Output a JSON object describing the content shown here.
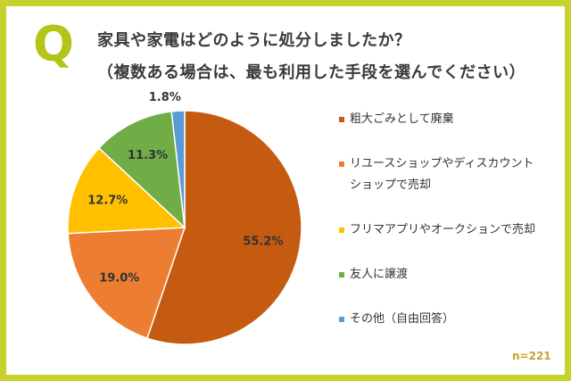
{
  "header": {
    "q_mark": "Q",
    "question_line1": "家具や家電はどのように処分しましたか？",
    "question_line2": "（複数ある場合は、最も利用した手段を選んでください）"
  },
  "sample_size": "n=221",
  "chart_data": {
    "type": "pie",
    "start_angle_deg": 0,
    "direction": "clockwise",
    "slices": [
      {
        "label": "粗大ごみとして廃棄",
        "value": 55.2,
        "display": "55.2%",
        "color": "#c55a11"
      },
      {
        "label": "リユースショップやディスカウントショップで売却",
        "value": 19.0,
        "display": "19.0%",
        "color": "#ed7d31"
      },
      {
        "label": "フリマアプリやオークションで売却",
        "value": 12.7,
        "display": "12.7%",
        "color": "#ffc000"
      },
      {
        "label": "友人に譲渡",
        "value": 11.3,
        "display": "11.3%",
        "color": "#70ad47"
      },
      {
        "label": "その他（自由回答）",
        "value": 1.8,
        "display": "1.8%",
        "color": "#5b9bd5"
      }
    ],
    "legend_position": "right"
  },
  "legend": {
    "items": [
      {
        "label_lines": [
          "粗大ごみとして廃棄"
        ]
      },
      {
        "label_lines": [
          "リユースショップやディスカウント",
          "ショップで売却"
        ]
      },
      {
        "label_lines": [
          "フリマアプリやオークションで売却"
        ]
      },
      {
        "label_lines": [
          "友人に譲渡"
        ]
      },
      {
        "label_lines": [
          "その他（自由回答）"
        ]
      }
    ]
  }
}
